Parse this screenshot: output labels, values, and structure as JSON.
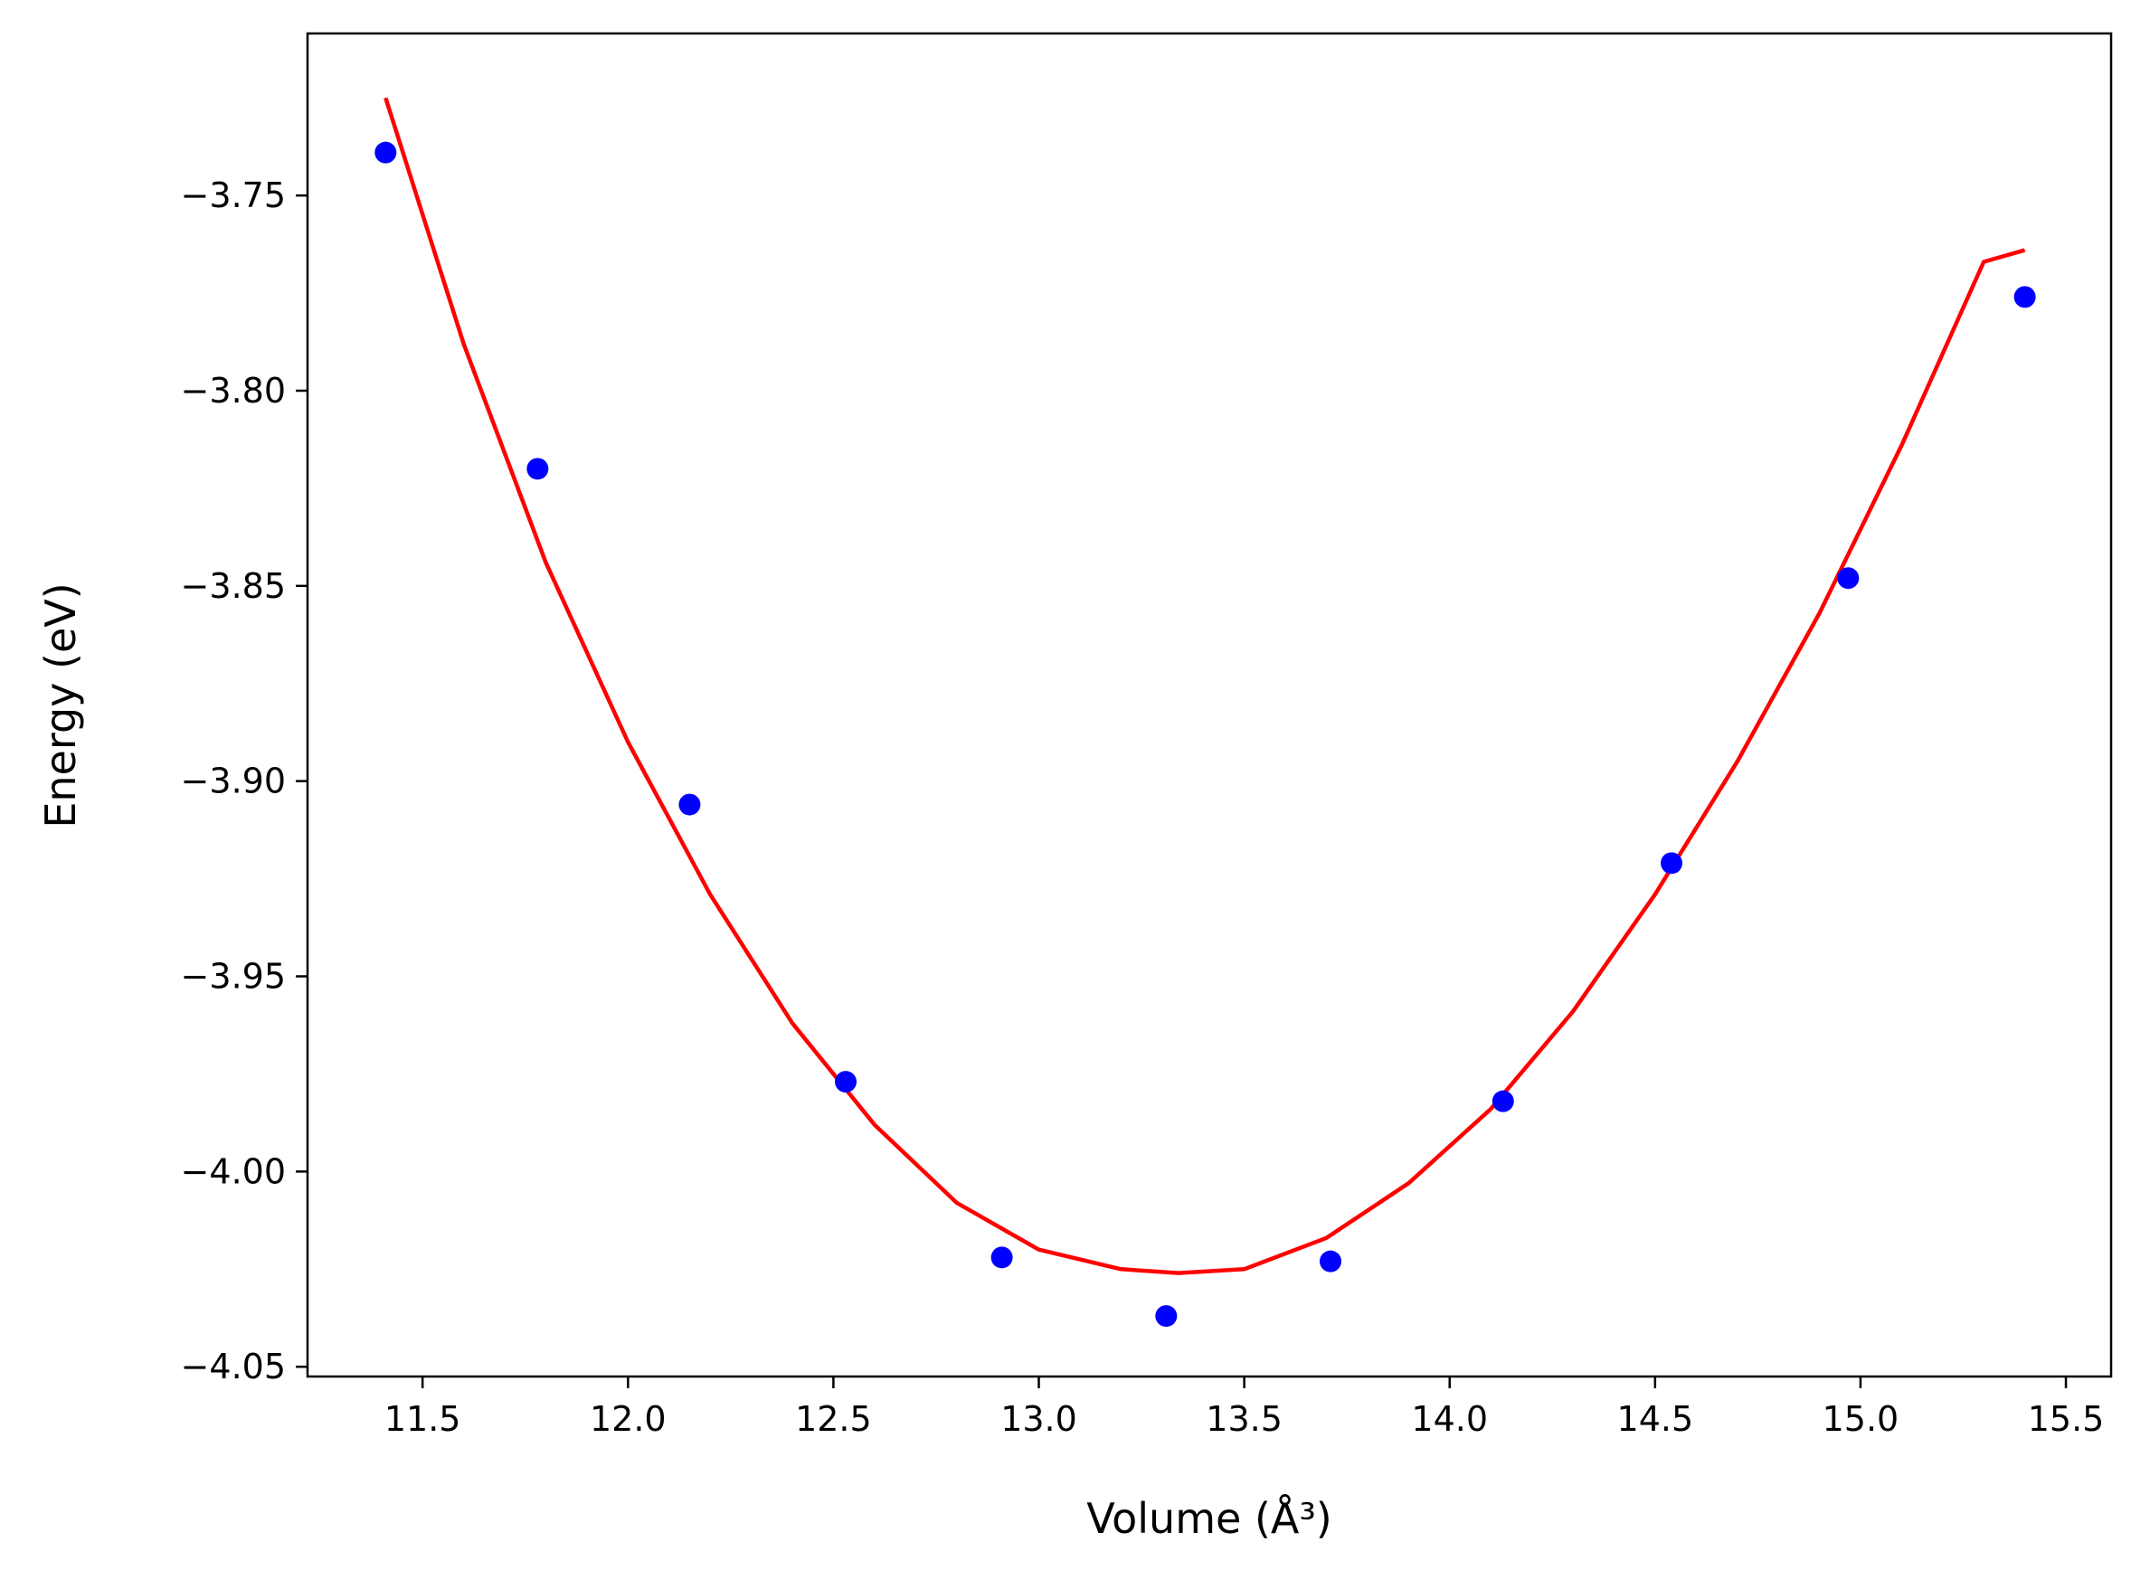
{
  "chart_data": {
    "type": "scatter",
    "xlabel": "Volume (Å³)",
    "ylabel": "Energy (eV)",
    "xlim": [
      11.22,
      15.61
    ],
    "ylim": [
      -4.0525,
      -3.7085
    ],
    "xticks": [
      11.5,
      12.0,
      12.5,
      13.0,
      13.5,
      14.0,
      14.5,
      15.0,
      15.5
    ],
    "xtick_labels": [
      "11.5",
      "12.0",
      "12.5",
      "13.0",
      "13.5",
      "14.0",
      "14.5",
      "15.0",
      "15.5"
    ],
    "yticks": [
      -3.75,
      -3.8,
      -3.85,
      -3.9,
      -3.95,
      -4.0,
      -4.05
    ],
    "ytick_labels": [
      "−3.75",
      "−3.80",
      "−3.85",
      "−3.90",
      "−3.95",
      "−4.00",
      "−4.05"
    ],
    "grid": false,
    "series": [
      {
        "kind": "points",
        "color": "#0000ff",
        "x": [
          11.41,
          11.78,
          12.15,
          12.53,
          12.91,
          13.31,
          13.71,
          14.13,
          14.54,
          14.97,
          15.4
        ],
        "y": [
          -3.739,
          -3.82,
          -3.906,
          -3.977,
          -4.022,
          -4.037,
          -4.023,
          -3.982,
          -3.921,
          -3.848,
          -3.776
        ]
      },
      {
        "kind": "fit-line",
        "color": "#ff0000",
        "x": [
          11.41,
          11.6,
          11.8,
          12.0,
          12.2,
          12.4,
          12.6,
          12.8,
          13.0,
          13.2,
          13.34,
          13.5,
          13.7,
          13.9,
          14.1,
          14.3,
          14.5,
          14.7,
          14.9,
          15.1,
          15.3,
          15.4
        ],
        "y": [
          -3.725,
          -3.788,
          -3.844,
          -3.89,
          -3.929,
          -3.962,
          -3.988,
          -4.008,
          -4.02,
          -4.025,
          -4.026,
          -4.025,
          -4.017,
          -4.003,
          -3.984,
          -3.959,
          -3.929,
          -3.895,
          -3.857,
          -3.814,
          -3.767,
          -3.764
        ]
      }
    ]
  }
}
